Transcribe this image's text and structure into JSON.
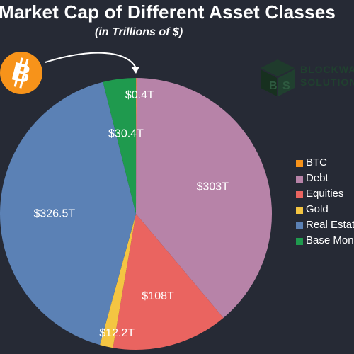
{
  "title": "Market Cap of Different Asset Classes",
  "subtitle": "(in Trillions of $)",
  "logo": {
    "line1": "BLOCKWARE",
    "line2": "SOLUTIONS"
  },
  "icons": {
    "btc": "bitcoin-icon",
    "arrow": "arrow-icon",
    "logo": "blockware-logo-icon"
  },
  "colors": {
    "background": "#262a35",
    "BTC": "#f7931a",
    "Debt": "#b783a8",
    "Equities": "#ea6460",
    "Gold": "#f4c542",
    "Real Estate": "#5b81b5",
    "Base Money": "#1f9a4e"
  },
  "chart_data": {
    "type": "pie",
    "title": "Market Cap of Different Asset Classes",
    "subtitle": "(in Trillions of $)",
    "legend_position": "right",
    "categories": [
      "BTC",
      "Debt",
      "Equities",
      "Gold",
      "Real Estate",
      "Base Money"
    ],
    "values": [
      0.4,
      303,
      108,
      12.2,
      326.5,
      30.4
    ],
    "value_labels": [
      "$0.4T",
      "$303T",
      "$108T",
      "$12.2T",
      "$326.5T",
      "$30.4T"
    ],
    "legend": [
      "BTC",
      "Debt",
      "Equities",
      "Gold",
      "Real Estate",
      "Base Money"
    ]
  }
}
